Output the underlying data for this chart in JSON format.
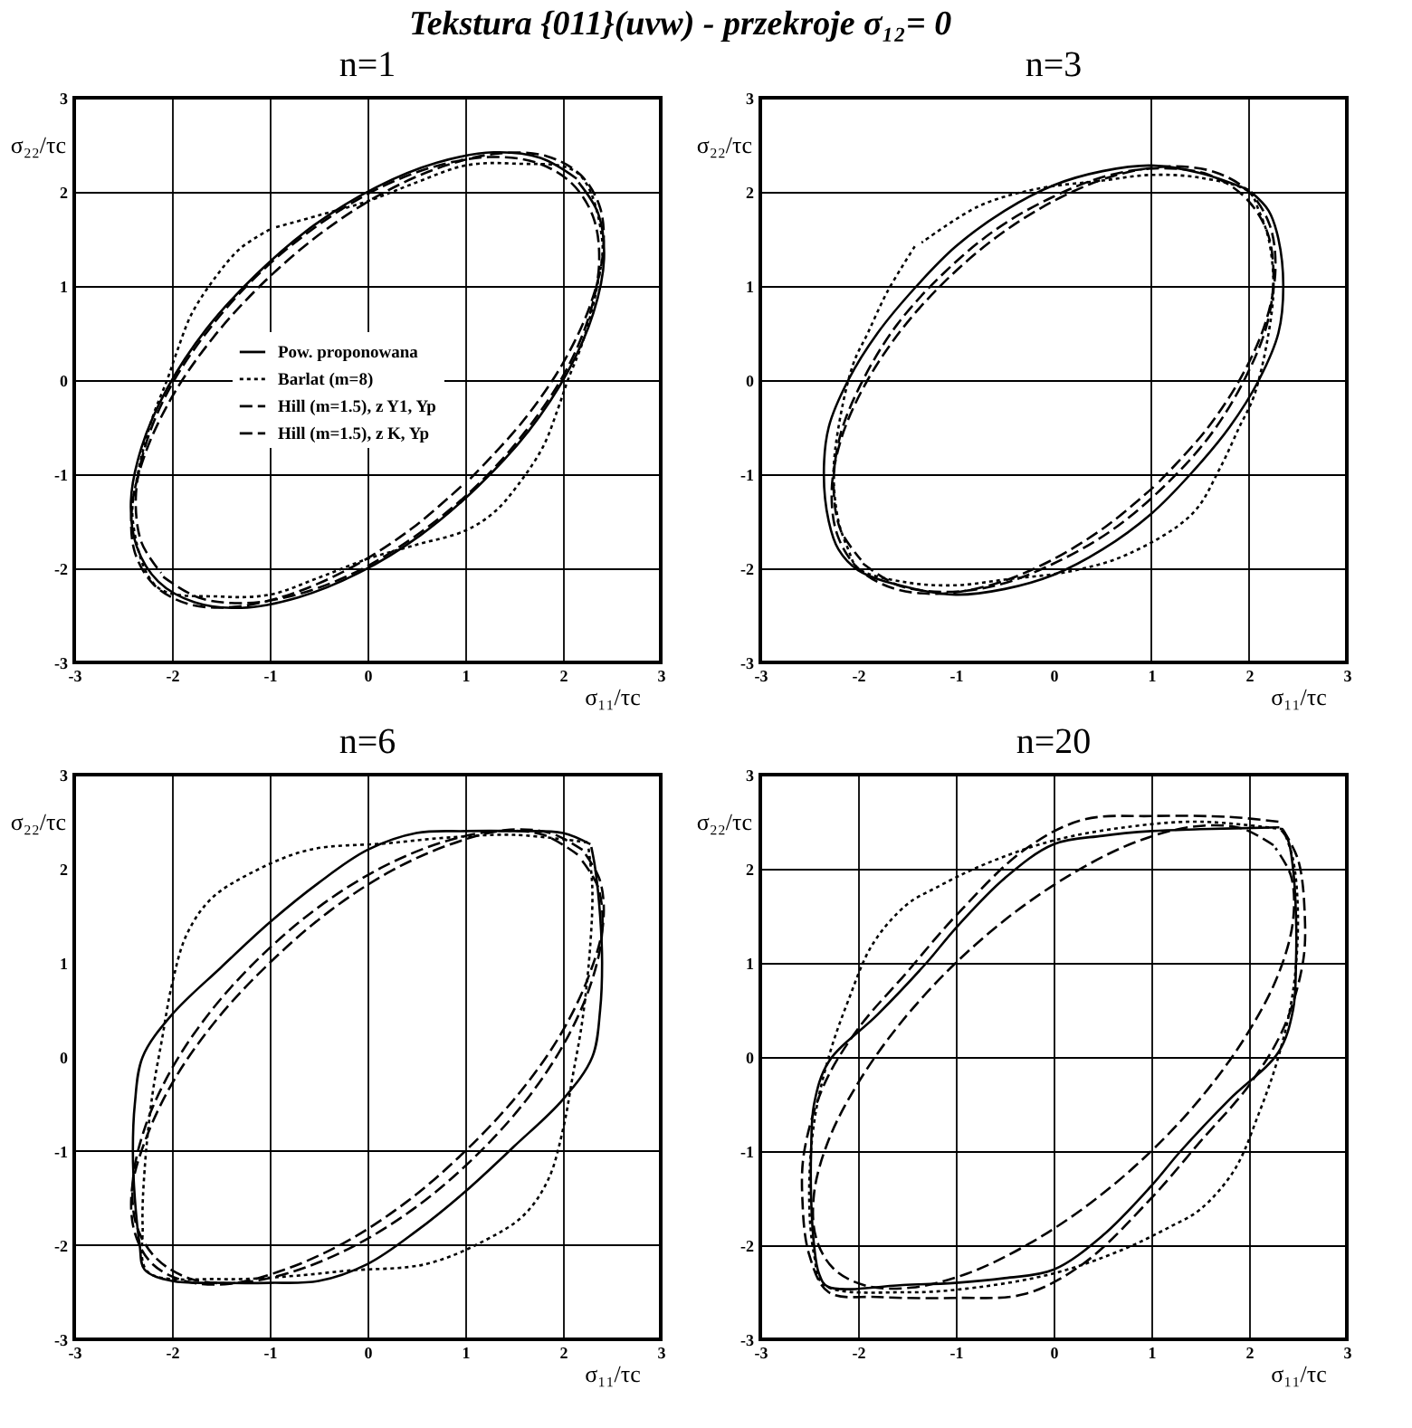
{
  "chart_data": [
    {
      "type": "line",
      "title": "Tekstura {011}(uvw) - przekroje σ₁₂= 0",
      "subtitle": "n=1",
      "xlabel": "σ₁₁/τc",
      "ylabel": "σ₂₂/τc",
      "xlim": [
        -3,
        3
      ],
      "ylim": [
        -3,
        3
      ],
      "xticks": [
        -3,
        -2,
        -1,
        0,
        1,
        2,
        3
      ],
      "yticks": [
        -3,
        -2,
        -1,
        0,
        1,
        2,
        3
      ],
      "grid": true,
      "legend": "center",
      "series": [
        {
          "name": "Pow. proponowana",
          "color": "#000000",
          "line_style": "solid",
          "x": [
            2.14,
            1.77,
            1.29,
            0.71,
            0.09,
            -0.54,
            -1.13,
            -1.65,
            -2.05,
            -2.31,
            -2.42,
            -2.36,
            -2.14,
            -1.77,
            -1.29,
            -0.71,
            -0.09,
            0.54,
            1.13,
            1.65,
            2.05,
            2.31,
            2.42,
            2.36,
            2.16
          ],
          "values": [
            2.14,
            2.36,
            2.42,
            2.31,
            2.05,
            1.65,
            1.13,
            0.54,
            -0.09,
            -0.71,
            -1.29,
            -1.77,
            -2.14,
            -2.36,
            -2.42,
            -2.31,
            -2.05,
            -1.65,
            -1.13,
            -0.54,
            0.09,
            0.71,
            1.29,
            1.77,
            2.1
          ]
        },
        {
          "name": "Barlat (m=8)",
          "color": "#000000",
          "line_style": "dotted",
          "x": [
            -1.0,
            -1.3,
            -1.55,
            -1.8,
            -1.95,
            -2.05,
            -2.2,
            -2.35,
            -2.4,
            -2.15,
            -1.5,
            -1.0,
            -0.5,
            0.0,
            0.5,
            1.0,
            1.3,
            1.55,
            1.8,
            1.95,
            2.05,
            2.2,
            2.35,
            2.4,
            2.15,
            1.5,
            1.0,
            0.5,
            0.0,
            -0.5,
            -0.95
          ],
          "values": [
            1.6,
            1.4,
            1.1,
            0.7,
            0.3,
            0.0,
            -0.4,
            -1.0,
            -1.5,
            -2.2,
            -2.3,
            -2.28,
            -2.1,
            -1.9,
            -1.75,
            -1.6,
            -1.4,
            -1.1,
            -0.7,
            -0.3,
            0.0,
            0.4,
            1.0,
            1.5,
            2.2,
            2.3,
            2.28,
            2.1,
            1.9,
            1.75,
            1.62
          ]
        },
        {
          "name": "Hill (m=1.5), z Y1, Yp",
          "color": "#000000",
          "line_style": "dashed",
          "x": [
            -2.09,
            -1.73,
            -1.25,
            -0.69,
            -0.08,
            0.54,
            1.12,
            1.62,
            2.02,
            2.27,
            2.37,
            2.31,
            2.09,
            1.73,
            1.25,
            0.69,
            0.08,
            -0.54,
            -1.12,
            -1.62,
            -2.02,
            -2.27,
            -2.37,
            -2.31,
            -2.11
          ],
          "values": [
            -2.09,
            -2.31,
            -2.37,
            -2.27,
            -2.02,
            -1.62,
            -1.12,
            -0.54,
            0.08,
            0.69,
            1.25,
            1.73,
            2.09,
            2.31,
            2.37,
            2.27,
            2.02,
            1.62,
            1.12,
            0.54,
            -0.08,
            -0.69,
            -1.25,
            -1.73,
            -2.05
          ]
        },
        {
          "name": "Hill (m=1.5), z K, Yp",
          "color": "#000000",
          "line_style": "dashed",
          "x": [
            1.05,
            1.58,
            2.0,
            2.28,
            2.41,
            2.38,
            2.18,
            1.83,
            1.36,
            0.8,
            0.18,
            -0.45,
            -1.05,
            -1.58,
            -2.0,
            -2.28,
            -2.41,
            -2.38,
            -2.18,
            -1.83,
            -1.36,
            -0.8,
            -0.18,
            0.45,
            0.99
          ],
          "values": [
            -1.05,
            -0.45,
            0.18,
            0.8,
            1.36,
            1.83,
            2.18,
            2.38,
            2.41,
            2.28,
            2.0,
            1.58,
            1.05,
            0.45,
            -0.18,
            -0.8,
            -1.36,
            -1.83,
            -2.18,
            -2.38,
            -2.41,
            -2.28,
            -2.0,
            -1.58,
            -1.1
          ]
        }
      ]
    },
    {
      "type": "line",
      "title": "n=3",
      "xlabel": "σ₁₁/τc",
      "ylabel": "σ₂₂/τc",
      "xlim": [
        -3,
        3
      ],
      "ylim": [
        -3,
        3
      ],
      "xticks": [
        -3,
        -2,
        -1,
        0,
        1,
        2,
        3
      ],
      "yticks": [
        -3,
        -2,
        -1,
        0,
        1,
        2,
        3
      ],
      "grid": "y",
      "ref_lines": [
        {
          "axis": "x",
          "value": 1
        },
        {
          "axis": "x",
          "value": 2
        }
      ],
      "series": [
        {
          "color": "#000000",
          "line_style": "solid",
          "x": [
            2.0,
            1.5,
            1.0,
            0.5,
            0.0,
            -0.5,
            -1.0,
            -1.4,
            -1.8,
            -2.1,
            -2.3,
            -2.35,
            -2.3,
            -2.2,
            -2.0,
            -1.5,
            -1.0,
            -0.5,
            0.0,
            0.5,
            1.0,
            1.4,
            1.8,
            2.1,
            2.3,
            2.35,
            2.3,
            2.2,
            2.02
          ],
          "values": [
            2.02,
            2.2,
            2.28,
            2.22,
            2.07,
            1.8,
            1.42,
            1.0,
            0.5,
            0.0,
            -0.5,
            -1.0,
            -1.5,
            -1.8,
            -2.02,
            -2.2,
            -2.28,
            -2.22,
            -2.07,
            -1.8,
            -1.42,
            -1.0,
            -0.5,
            0.0,
            0.5,
            1.0,
            1.5,
            1.8,
            2.0
          ]
        },
        {
          "color": "#000000",
          "line_style": "dotted",
          "x": [
            -1.42,
            -1.7,
            -1.9,
            -2.05,
            -2.2,
            -2.25,
            -2.2,
            -2.1,
            -2.0,
            -1.5,
            -1.0,
            -0.5,
            0.18,
            0.76,
            1.42,
            1.7,
            1.9,
            2.05,
            2.2,
            2.25,
            2.2,
            2.1,
            2.0,
            1.5,
            1.0,
            0.5,
            -0.18,
            -0.76,
            -1.35
          ],
          "values": [
            1.42,
            0.94,
            0.5,
            0.17,
            -0.5,
            -1.0,
            -1.5,
            -1.8,
            -2.0,
            -2.15,
            -2.18,
            -2.12,
            -2.03,
            -1.85,
            -1.42,
            -0.94,
            -0.5,
            -0.17,
            0.5,
            1.0,
            1.5,
            1.8,
            2.0,
            2.15,
            2.18,
            2.12,
            2.03,
            1.85,
            1.46
          ]
        },
        {
          "color": "#000000",
          "line_style": "dashed",
          "x": [
            -1.95,
            -1.59,
            -1.12,
            -0.58,
            0.0,
            0.59,
            1.13,
            1.6,
            1.95,
            2.18,
            2.25,
            2.18,
            1.95,
            1.59,
            1.12,
            0.58,
            0.0,
            -0.59,
            -1.13,
            -1.6,
            -1.95,
            -2.18,
            -2.25,
            -2.18,
            -1.97
          ],
          "values": [
            -1.95,
            -2.18,
            -2.25,
            -2.18,
            -1.95,
            -1.6,
            -1.13,
            -0.59,
            0.0,
            0.58,
            1.12,
            1.59,
            1.95,
            2.18,
            2.25,
            2.18,
            1.95,
            1.6,
            1.13,
            0.59,
            0.0,
            -0.58,
            -1.12,
            -1.59,
            -1.91
          ]
        },
        {
          "color": "#000000",
          "line_style": "dashed",
          "x": [
            1.08,
            1.56,
            1.94,
            2.18,
            2.27,
            2.21,
            2.0,
            1.65,
            1.19,
            0.65,
            0.07,
            -0.53,
            -1.08,
            -1.56,
            -1.94,
            -2.18,
            -2.27,
            -2.21,
            -2.0,
            -1.65,
            -1.19,
            -0.65,
            -0.07,
            0.53,
            1.03
          ],
          "values": [
            -1.08,
            -0.53,
            0.07,
            0.65,
            1.19,
            1.65,
            2.0,
            2.21,
            2.27,
            2.18,
            1.94,
            1.56,
            1.08,
            0.53,
            -0.07,
            -0.65,
            -1.19,
            -1.65,
            -2.0,
            -2.21,
            -2.27,
            -2.18,
            -1.94,
            -1.56,
            -1.13
          ]
        }
      ]
    },
    {
      "type": "line",
      "title": "n=6",
      "xlabel": "σ₁₁/τc",
      "ylabel": "σ₂₂/τc",
      "xlim": [
        -3,
        3
      ],
      "ylim": [
        -3,
        3
      ],
      "xticks": [
        -3,
        -2,
        -1,
        0,
        1,
        2,
        3
      ],
      "yticks": [
        -3,
        -2,
        -1,
        0,
        1,
        2,
        3
      ],
      "grid": "x",
      "ref_lines": [
        {
          "axis": "y",
          "value": -1
        },
        {
          "axis": "y",
          "value": -2
        }
      ],
      "series": [
        {
          "color": "#000000",
          "line_style": "solid",
          "x": [
            2.28,
            2.0,
            1.5,
            1.0,
            0.5,
            0.0,
            -0.5,
            -1.0,
            -1.5,
            -2.0,
            -2.3,
            -2.38,
            -2.4,
            -2.38,
            -2.33,
            -2.28,
            -2.0,
            -1.5,
            -1.0,
            -0.5,
            0.0,
            0.5,
            1.0,
            1.5,
            2.0,
            2.3,
            2.38,
            2.4,
            2.38,
            2.33,
            2.29
          ],
          "values": [
            2.26,
            2.38,
            2.4,
            2.4,
            2.38,
            2.2,
            1.85,
            1.43,
            0.95,
            0.45,
            0.0,
            -0.5,
            -1.0,
            -1.5,
            -2.0,
            -2.26,
            -2.38,
            -2.4,
            -2.4,
            -2.38,
            -2.2,
            -1.85,
            -1.43,
            -0.95,
            -0.45,
            0.0,
            0.5,
            1.0,
            1.5,
            2.0,
            2.23
          ]
        },
        {
          "color": "#000000",
          "line_style": "dotted",
          "x": [
            2.25,
            1.5,
            0.8,
            0.2,
            -0.6,
            -1.2,
            -1.6,
            -1.85,
            -2.0,
            -2.1,
            -2.2,
            -2.28,
            -2.3,
            -2.25,
            -1.5,
            -0.8,
            -0.2,
            0.6,
            1.2,
            1.6,
            1.85,
            2.0,
            2.1,
            2.2,
            2.28,
            2.3,
            2.26
          ],
          "values": [
            2.28,
            2.36,
            2.33,
            2.27,
            2.2,
            1.95,
            1.68,
            1.3,
            0.77,
            0.2,
            -0.4,
            -1.2,
            -1.8,
            -2.28,
            -2.36,
            -2.33,
            -2.27,
            -2.2,
            -1.95,
            -1.68,
            -1.3,
            -0.77,
            -0.2,
            0.4,
            1.2,
            1.8,
            2.23
          ]
        },
        {
          "color": "#000000",
          "line_style": "dashed",
          "x": [
            2.2,
            1.87,
            1.41,
            0.85,
            0.23,
            -0.4,
            -1.0,
            -1.54,
            -1.97,
            -2.26,
            -2.41,
            -2.38,
            -2.2,
            -1.87,
            -1.41,
            -0.85,
            -0.23,
            0.4,
            1.0,
            1.54,
            1.97,
            2.26,
            2.41,
            2.38,
            2.22
          ],
          "values": [
            2.2,
            2.38,
            2.41,
            2.26,
            1.97,
            1.54,
            1.0,
            0.4,
            -0.23,
            -0.85,
            -1.41,
            -1.87,
            -2.2,
            -2.38,
            -2.41,
            -2.26,
            -1.97,
            -1.54,
            -1.0,
            -0.4,
            0.23,
            0.85,
            1.41,
            1.87,
            2.17
          ]
        },
        {
          "color": "#000000",
          "line_style": "dashed",
          "x": [
            2.15,
            1.8,
            1.32,
            0.76,
            0.14,
            -0.49,
            -1.08,
            -1.6,
            -2.01,
            -2.28,
            -2.4,
            -2.36,
            -2.15,
            -1.8,
            -1.32,
            -0.76,
            -0.14,
            0.49,
            1.08,
            1.6,
            2.01,
            2.28,
            2.4,
            2.36,
            2.17
          ],
          "values": [
            2.15,
            2.36,
            2.4,
            2.28,
            2.01,
            1.6,
            1.08,
            0.49,
            -0.14,
            -0.76,
            -1.32,
            -1.8,
            -2.15,
            -2.36,
            -2.4,
            -2.28,
            -2.01,
            -1.6,
            -1.08,
            -0.49,
            0.14,
            0.76,
            1.32,
            1.8,
            2.12
          ]
        }
      ]
    },
    {
      "type": "line",
      "title": "n=20",
      "xlabel": "σ₁₁/τc",
      "ylabel": "σ₂₂/τc",
      "xlim": [
        -3,
        3
      ],
      "ylim": [
        -3,
        3
      ],
      "xticks": [
        -3,
        -2,
        -1,
        0,
        1,
        2,
        3
      ],
      "yticks": [
        -3,
        -2,
        -1,
        0,
        1,
        2,
        3
      ],
      "grid": true,
      "series": [
        {
          "color": "#000000",
          "line_style": "solid",
          "x": [
            2.31,
            1.5,
            1.0,
            0.5,
            0.0,
            -0.5,
            -1.0,
            -1.3,
            -1.8,
            -2.3,
            -2.45,
            -2.48,
            -2.48,
            -2.45,
            -2.4,
            -2.31,
            -1.5,
            -1.0,
            -0.5,
            0.0,
            0.5,
            1.0,
            1.3,
            1.8,
            2.3,
            2.45,
            2.48,
            2.48,
            2.45,
            2.4,
            2.33
          ],
          "values": [
            2.44,
            2.42,
            2.4,
            2.35,
            2.26,
            1.9,
            1.37,
            1.0,
            0.45,
            -0.05,
            -0.5,
            -1.0,
            -1.5,
            -2.0,
            -2.3,
            -2.44,
            -2.42,
            -2.4,
            -2.35,
            -2.26,
            -1.9,
            -1.37,
            -1.0,
            -0.45,
            0.05,
            0.5,
            1.0,
            1.5,
            2.0,
            2.3,
            2.41
          ]
        },
        {
          "color": "#000000",
          "line_style": "dotted",
          "x": [
            2.35,
            1.5,
            0.8,
            0.0,
            -0.7,
            -1.2,
            -1.5,
            -1.85,
            -2.1,
            -2.3,
            -2.45,
            -2.5,
            -2.45,
            -2.35,
            -1.5,
            -0.8,
            0.0,
            0.7,
            1.2,
            1.5,
            1.85,
            2.1,
            2.3,
            2.45,
            2.5,
            2.45,
            2.36
          ],
          "values": [
            2.42,
            2.5,
            2.45,
            2.3,
            2.05,
            1.8,
            1.62,
            1.2,
            0.6,
            0.0,
            -0.7,
            -1.5,
            -2.1,
            -2.42,
            -2.5,
            -2.45,
            -2.3,
            -2.05,
            -1.8,
            -1.62,
            -1.2,
            -0.6,
            0.0,
            0.7,
            1.5,
            2.1,
            2.39
          ]
        },
        {
          "color": "#000000",
          "line_style": "dashed",
          "x": [
            2.3,
            1.8,
            1.0,
            0.3,
            -0.3,
            -1.0,
            -1.5,
            -2.0,
            -2.35,
            -2.55,
            -2.57,
            -2.5,
            -2.3,
            -1.8,
            -1.0,
            -0.3,
            0.3,
            1.0,
            1.5,
            2.0,
            2.35,
            2.55,
            2.57,
            2.5,
            2.32
          ],
          "values": [
            2.5,
            2.55,
            2.56,
            2.52,
            2.2,
            1.5,
            0.9,
            0.3,
            -0.3,
            -1.0,
            -1.5,
            -2.1,
            -2.5,
            -2.55,
            -2.56,
            -2.52,
            -2.2,
            -1.5,
            -0.9,
            -0.3,
            0.3,
            1.0,
            1.5,
            2.1,
            2.46
          ]
        },
        {
          "color": "#000000",
          "line_style": "dashed",
          "x": [
            2.25,
            1.92,
            1.45,
            0.88,
            0.26,
            -0.38,
            -1.0,
            -1.55,
            -1.99,
            -2.3,
            -2.45,
            -2.43,
            -2.25,
            -1.92,
            -1.45,
            -0.88,
            -0.26,
            0.38,
            1.0,
            1.55,
            1.99,
            2.3,
            2.45,
            2.43,
            2.27
          ],
          "values": [
            2.25,
            2.43,
            2.45,
            2.3,
            1.99,
            1.55,
            1.0,
            0.38,
            -0.26,
            -0.88,
            -1.45,
            -1.92,
            -2.25,
            -2.43,
            -2.45,
            -2.3,
            -1.99,
            -1.55,
            -1.0,
            -0.38,
            0.26,
            0.88,
            1.45,
            1.92,
            2.22
          ]
        }
      ]
    }
  ]
}
